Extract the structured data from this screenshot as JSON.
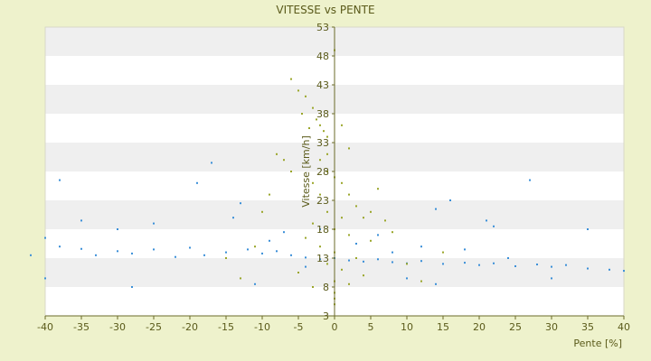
{
  "chart_data": {
    "type": "scatter",
    "title": "VITESSE vs PENTE",
    "xlabel": "Pente [%]",
    "ylabel": "Vitesse [km/h]",
    "xlim": [
      -40,
      40
    ],
    "ylim": [
      3,
      53
    ],
    "x_ticks": [
      "-40",
      "-35",
      "-30",
      "-25",
      "-20",
      "-15",
      "-10",
      "-5",
      "0",
      "5",
      "10",
      "15",
      "20",
      "25",
      "30",
      "35",
      "40"
    ],
    "y_ticks": [
      "3",
      "8",
      "13",
      "18",
      "23",
      "28",
      "33",
      "38",
      "43",
      "48",
      "53"
    ],
    "grid": "horizontal alternating bands",
    "colors": {
      "background": "#eef2cc",
      "plot": "#ffffff",
      "band": "#efefef",
      "series_a": "#3a8fd8",
      "series_b": "#9aa62a",
      "axis": "#6b6b2a"
    },
    "series": [
      {
        "color": "#3a8fd8",
        "points": [
          [
            -12,
            14.5
          ],
          [
            -10,
            13.8
          ],
          [
            -8,
            14.2
          ],
          [
            -6,
            13.5
          ],
          [
            -4,
            13.1
          ],
          [
            -2,
            12.8
          ],
          [
            0,
            13.0
          ],
          [
            2,
            12.6
          ],
          [
            4,
            12.4
          ],
          [
            6,
            12.8
          ],
          [
            8,
            12.3
          ],
          [
            10,
            12.1
          ],
          [
            12,
            12.5
          ],
          [
            15,
            12.0
          ],
          [
            18,
            12.2
          ],
          [
            20,
            11.8
          ],
          [
            22,
            12.1
          ],
          [
            25,
            11.6
          ],
          [
            28,
            11.9
          ],
          [
            30,
            11.5
          ],
          [
            32,
            11.8
          ],
          [
            35,
            11.2
          ],
          [
            38,
            11.0
          ],
          [
            40,
            10.8
          ],
          [
            -15,
            14.0
          ],
          [
            -18,
            13.5
          ],
          [
            -20,
            14.8
          ],
          [
            -22,
            13.2
          ],
          [
            -25,
            14.5
          ],
          [
            -28,
            13.8
          ],
          [
            -30,
            14.2
          ],
          [
            -33,
            13.5
          ],
          [
            -35,
            14.6
          ],
          [
            -38,
            15.0
          ],
          [
            -40,
            16.5
          ],
          [
            -42,
            13.5
          ],
          [
            -17,
            29.5
          ],
          [
            -19,
            26.0
          ],
          [
            -25,
            19.0
          ],
          [
            -28,
            8.0
          ],
          [
            -38,
            26.5
          ],
          [
            -40,
            9.5
          ],
          [
            -35,
            19.5
          ],
          [
            -30,
            18.0
          ],
          [
            -14,
            20.0
          ],
          [
            -13,
            22.5
          ],
          [
            14,
            21.5
          ],
          [
            16,
            23.0
          ],
          [
            21,
            19.5
          ],
          [
            27,
            26.5
          ],
          [
            22,
            18.5
          ],
          [
            35,
            18.0
          ],
          [
            30,
            9.5
          ],
          [
            14,
            8.5
          ],
          [
            10,
            9.5
          ],
          [
            -11,
            8.5
          ],
          [
            -4,
            11.5
          ],
          [
            3,
            15.5
          ],
          [
            6,
            17.0
          ],
          [
            -7,
            17.5
          ],
          [
            12,
            15.0
          ],
          [
            -2,
            18.0
          ],
          [
            8,
            14.0
          ],
          [
            -9,
            16.0
          ],
          [
            18,
            14.5
          ],
          [
            24,
            13.0
          ]
        ]
      },
      {
        "color": "#9aa62a",
        "points": [
          [
            -6,
            44
          ],
          [
            -5,
            42
          ],
          [
            -4,
            41
          ],
          [
            -3,
            39
          ],
          [
            -2.5,
            37
          ],
          [
            -2,
            36
          ],
          [
            -1.5,
            35
          ],
          [
            -1,
            34
          ],
          [
            0,
            49
          ],
          [
            -4.5,
            38
          ],
          [
            -3.5,
            35.5
          ],
          [
            -1,
            31
          ],
          [
            1,
            36
          ],
          [
            2,
            32
          ],
          [
            -2,
            30
          ],
          [
            -1,
            28
          ],
          [
            0,
            27
          ],
          [
            -3,
            26
          ],
          [
            1,
            26
          ],
          [
            2,
            24
          ],
          [
            -2,
            24
          ],
          [
            3,
            22
          ],
          [
            -1,
            21
          ],
          [
            1,
            20
          ],
          [
            4,
            20
          ],
          [
            -3,
            19
          ],
          [
            0,
            18
          ],
          [
            2,
            17
          ],
          [
            -4,
            16.5
          ],
          [
            5,
            16
          ],
          [
            -2,
            15
          ],
          [
            0,
            14
          ],
          [
            3,
            13
          ],
          [
            -1,
            12
          ],
          [
            1,
            11
          ],
          [
            -5,
            10.5
          ],
          [
            4,
            10
          ],
          [
            0,
            9
          ],
          [
            2,
            8.5
          ],
          [
            -3,
            8
          ],
          [
            0,
            7
          ],
          [
            0,
            6
          ],
          [
            0,
            5
          ],
          [
            -7,
            30
          ],
          [
            -8,
            31
          ],
          [
            -6,
            28
          ],
          [
            6,
            25
          ],
          [
            5,
            21
          ],
          [
            -10,
            21
          ],
          [
            7,
            19.5
          ],
          [
            -9,
            24
          ],
          [
            8,
            17.5
          ],
          [
            -11,
            15
          ],
          [
            10,
            12
          ],
          [
            12,
            9
          ],
          [
            -13,
            9.5
          ],
          [
            15,
            14
          ],
          [
            -15,
            13
          ]
        ]
      }
    ]
  }
}
